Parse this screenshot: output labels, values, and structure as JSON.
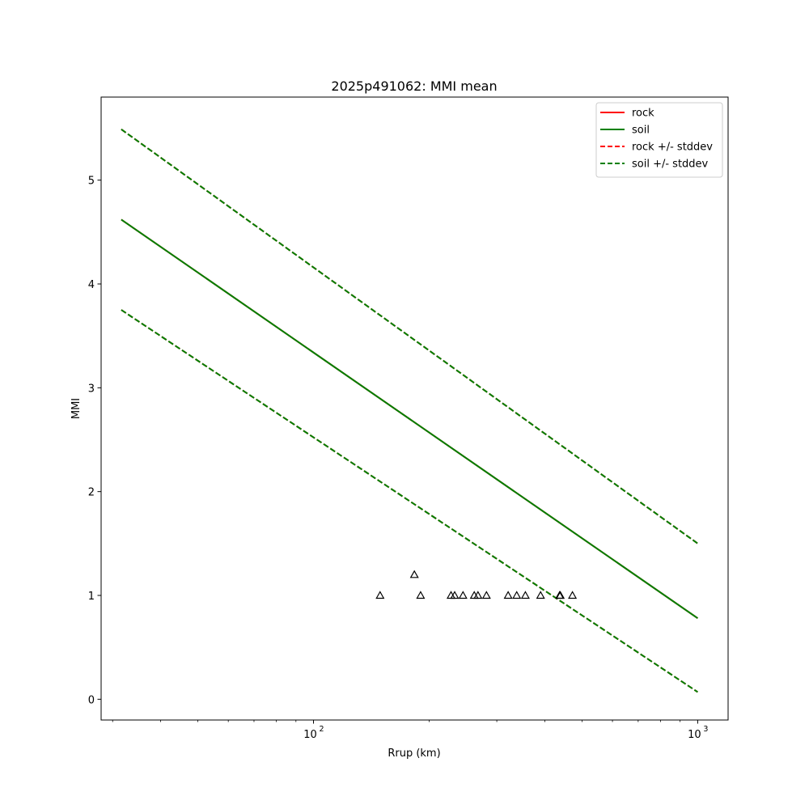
{
  "chart_data": {
    "type": "line",
    "title": "2025p491062: MMI mean",
    "xlabel": "Rrup (km)",
    "ylabel": "MMI",
    "xscale": "log",
    "xlim": [
      28,
      1200
    ],
    "ylim": [
      -0.2,
      5.8
    ],
    "x_major_ticks": [
      {
        "value": 100,
        "base": "10",
        "exp": "2"
      },
      {
        "value": 1000,
        "base": "10",
        "exp": "3"
      }
    ],
    "x_minor_ticks": [
      30,
      40,
      50,
      60,
      70,
      80,
      90,
      200,
      300,
      400,
      500,
      600,
      700,
      800,
      900
    ],
    "y_ticks": [
      0,
      1,
      2,
      3,
      4,
      5
    ],
    "grid": false,
    "legend_position": "top-right",
    "series": [
      {
        "name": "rock",
        "color": "#ff0000",
        "style": "solid",
        "x": [
          31.6,
          1000
        ],
        "y": [
          4.62,
          0.78
        ]
      },
      {
        "name": "soil",
        "color": "#008000",
        "style": "solid",
        "x": [
          31.6,
          1000
        ],
        "y": [
          4.62,
          0.78
        ]
      },
      {
        "name": "rock +/- stddev",
        "color": "#ff0000",
        "style": "dashed",
        "x": [
          31.6,
          1000
        ],
        "y": [
          5.49,
          1.5
        ],
        "y_lower": [
          3.75,
          0.07
        ]
      },
      {
        "name": "soil +/- stddev",
        "color": "#008000",
        "style": "dashed",
        "x": [
          31.6,
          1000
        ],
        "y": [
          5.49,
          1.5
        ],
        "y_lower": [
          3.75,
          0.07
        ]
      }
    ],
    "observations": {
      "marker": "triangle-open",
      "color": "#000000",
      "x": [
        149,
        183,
        190,
        228,
        233,
        245,
        262,
        268,
        282,
        321,
        338,
        356,
        390,
        437,
        439,
        472
      ],
      "y": [
        1.0,
        1.2,
        1.0,
        1.0,
        1.0,
        1.0,
        1.0,
        1.0,
        1.0,
        1.0,
        1.0,
        1.0,
        1.0,
        1.0,
        1.0,
        1.0
      ]
    }
  }
}
